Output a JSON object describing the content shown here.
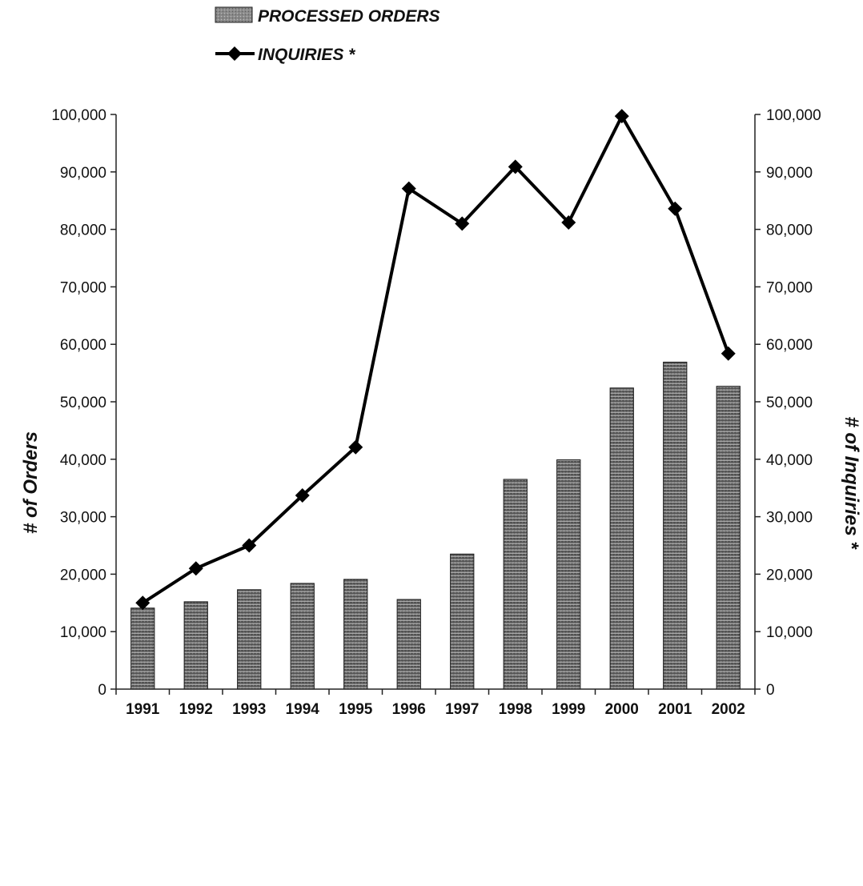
{
  "chart_data": {
    "type": "bar",
    "categories": [
      "1991",
      "1992",
      "1993",
      "1994",
      "1995",
      "1996",
      "1997",
      "1998",
      "1999",
      "2000",
      "2001",
      "2002"
    ],
    "series": [
      {
        "name": "PROCESSED ORDERS",
        "type": "bar",
        "axis": "left",
        "values": [
          14100,
          15200,
          17300,
          18400,
          19100,
          15600,
          23500,
          36500,
          39900,
          52400,
          56900,
          52700
        ]
      },
      {
        "name": "INQUIRIES *",
        "type": "line",
        "axis": "right",
        "marker": "diamond",
        "values": [
          15000,
          21000,
          25000,
          33700,
          42100,
          87100,
          81000,
          90900,
          81200,
          99700,
          83600,
          58400
        ]
      }
    ],
    "ylabel": "# of Orders",
    "y2label": "# of Inquiries *",
    "ylim": [
      0,
      100000
    ],
    "y2lim": [
      0,
      100000
    ],
    "yticks": [
      "0",
      "10,000",
      "20,000",
      "30,000",
      "40,000",
      "50,000",
      "60,000",
      "70,000",
      "80,000",
      "90,000",
      "100,000"
    ],
    "y2ticks": [
      "0",
      "10,000",
      "20,000",
      "30,000",
      "40,000",
      "50,000",
      "60,000",
      "70,000",
      "80,000",
      "90,000",
      "100,000"
    ],
    "grid": false,
    "legend_position": "top-center",
    "colors": {
      "bar": "#5e5e5e",
      "bar_light": "#c8c8c8",
      "line": "#000000",
      "axis": "#222222"
    }
  }
}
